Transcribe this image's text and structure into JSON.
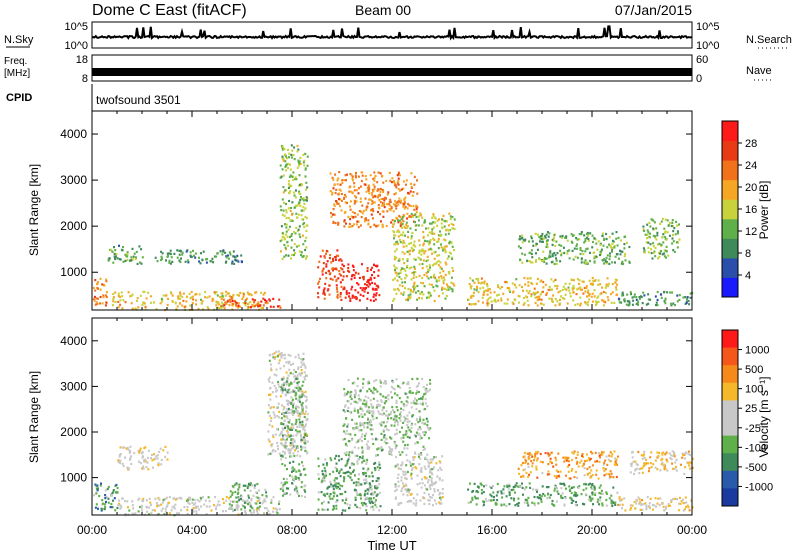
{
  "header": {
    "station": "Dome C East (fitACF)",
    "beam": "Beam 00",
    "date": "07/Jan/2015"
  },
  "param_panels": {
    "nsky": {
      "label": "N.Sky",
      "tick_top": "10^5",
      "tick_bottom": "10^0"
    },
    "nsearch": {
      "label": "N.Search",
      "tick_top": "10^5",
      "tick_bottom": "10^0"
    },
    "freq": {
      "label_line1": "Freq.",
      "label_line2": "[MHz]",
      "tick_top": "18",
      "tick_bottom": "8"
    },
    "nave": {
      "label": "Nave",
      "tick_top": "60",
      "tick_bottom": "0"
    },
    "cpid": {
      "label": "CPID",
      "value": "twofsound 3501"
    }
  },
  "x_axis": {
    "title": "Time UT",
    "tick_labels": [
      "00:00",
      "04:00",
      "08:00",
      "12:00",
      "16:00",
      "20:00",
      "00:00"
    ]
  },
  "colors": {
    "power_scale": [
      "#1a1aff",
      "#2a4faa",
      "#3f8a5a",
      "#5fb04a",
      "#c8d23a",
      "#f5a623",
      "#f2721c",
      "#e83a14",
      "#ff1a1a"
    ],
    "velocity_scale": [
      "#ff1a1a",
      "#f5561a",
      "#f58a1a",
      "#f5b82a",
      "#c8c8c8",
      "#c8c8c8",
      "#5fb04a",
      "#3f8a5a",
      "#2a5aaa",
      "#1a3aa0"
    ]
  },
  "chart_data": [
    {
      "type": "heatmap",
      "name": "power",
      "ylabel": "Slant Range [km]",
      "y_ticks": [
        "1000",
        "2000",
        "3000",
        "4000"
      ],
      "xlim_hours": [
        0,
        24
      ],
      "ylim_km": [
        180,
        4500
      ],
      "colorbar_label": "Power [dB]",
      "colorbar_ticks": [
        "4",
        "8",
        "12",
        "16",
        "20",
        "24",
        "28"
      ],
      "clim": [
        0,
        32
      ],
      "data_gap_hours": [
        8.7,
        8.85
      ],
      "regions": [
        {
          "t": [
            0.0,
            0.6
          ],
          "r": [
            300,
            900
          ],
          "v": 22
        },
        {
          "t": [
            0.6,
            2.0
          ],
          "r": [
            1200,
            1600
          ],
          "v": 11
        },
        {
          "t": [
            0.8,
            7.0
          ],
          "r": [
            200,
            600
          ],
          "v": 18
        },
        {
          "t": [
            5.0,
            7.5
          ],
          "r": [
            250,
            450
          ],
          "v": 27
        },
        {
          "t": [
            2.5,
            6.0
          ],
          "r": [
            1200,
            1500
          ],
          "v": 9
        },
        {
          "t": [
            7.5,
            8.6
          ],
          "r": [
            1300,
            3800
          ],
          "v": 14
        },
        {
          "t": [
            9.0,
            10.0
          ],
          "r": [
            400,
            1500
          ],
          "v": 26
        },
        {
          "t": [
            10.0,
            11.5
          ],
          "r": [
            400,
            1200
          ],
          "v": 30
        },
        {
          "t": [
            9.5,
            13.0
          ],
          "r": [
            2000,
            3200
          ],
          "v": 22
        },
        {
          "t": [
            12.0,
            14.5
          ],
          "r": [
            400,
            2300
          ],
          "v": 16
        },
        {
          "t": [
            15.0,
            21.0
          ],
          "r": [
            300,
            900
          ],
          "v": 18
        },
        {
          "t": [
            17.0,
            21.5
          ],
          "r": [
            1200,
            1900
          ],
          "v": 12
        },
        {
          "t": [
            21.0,
            24.0
          ],
          "r": [
            300,
            600
          ],
          "v": 10
        },
        {
          "t": [
            22.0,
            23.5
          ],
          "r": [
            1300,
            2200
          ],
          "v": 13
        }
      ]
    },
    {
      "type": "heatmap",
      "name": "velocity",
      "ylabel": "Slant Range [km]",
      "y_ticks": [
        "1000",
        "2000",
        "3000",
        "4000"
      ],
      "xlim_hours": [
        0,
        24
      ],
      "ylim_km": [
        180,
        4500
      ],
      "colorbar_label": "Velocity [m s⁻¹]",
      "colorbar_ticks": [
        "1000",
        "500",
        "100",
        "25",
        "-25",
        "-100",
        "-500",
        "-1000"
      ],
      "clim": [
        -1200,
        1200
      ],
      "data_gap_hours": [
        8.7,
        8.85
      ],
      "regions": [
        {
          "t": [
            0.0,
            1.0
          ],
          "r": [
            300,
            900
          ],
          "v": -500
        },
        {
          "t": [
            1.0,
            3.0
          ],
          "r": [
            1200,
            1700
          ],
          "v": 100
        },
        {
          "t": [
            1.0,
            7.5
          ],
          "r": [
            200,
            600
          ],
          "v": 0
        },
        {
          "t": [
            5.5,
            7.0
          ],
          "r": [
            300,
            900
          ],
          "v": -300
        },
        {
          "t": [
            7.0,
            8.6
          ],
          "r": [
            1500,
            3800
          ],
          "v": 0
        },
        {
          "t": [
            7.5,
            8.5
          ],
          "r": [
            600,
            3200
          ],
          "v": -300
        },
        {
          "t": [
            9.0,
            11.5
          ],
          "r": [
            300,
            1500
          ],
          "v": -400
        },
        {
          "t": [
            10.0,
            13.5
          ],
          "r": [
            1500,
            3200
          ],
          "v": -200
        },
        {
          "t": [
            12.0,
            14.0
          ],
          "r": [
            400,
            1500
          ],
          "v": 0
        },
        {
          "t": [
            15.0,
            21.0
          ],
          "r": [
            400,
            900
          ],
          "v": -400
        },
        {
          "t": [
            17.0,
            21.0
          ],
          "r": [
            1000,
            1600
          ],
          "v": 500
        },
        {
          "t": [
            21.0,
            24.0
          ],
          "r": [
            300,
            600
          ],
          "v": 200
        },
        {
          "t": [
            21.5,
            24.0
          ],
          "r": [
            1100,
            1600
          ],
          "v": 300
        }
      ]
    }
  ]
}
